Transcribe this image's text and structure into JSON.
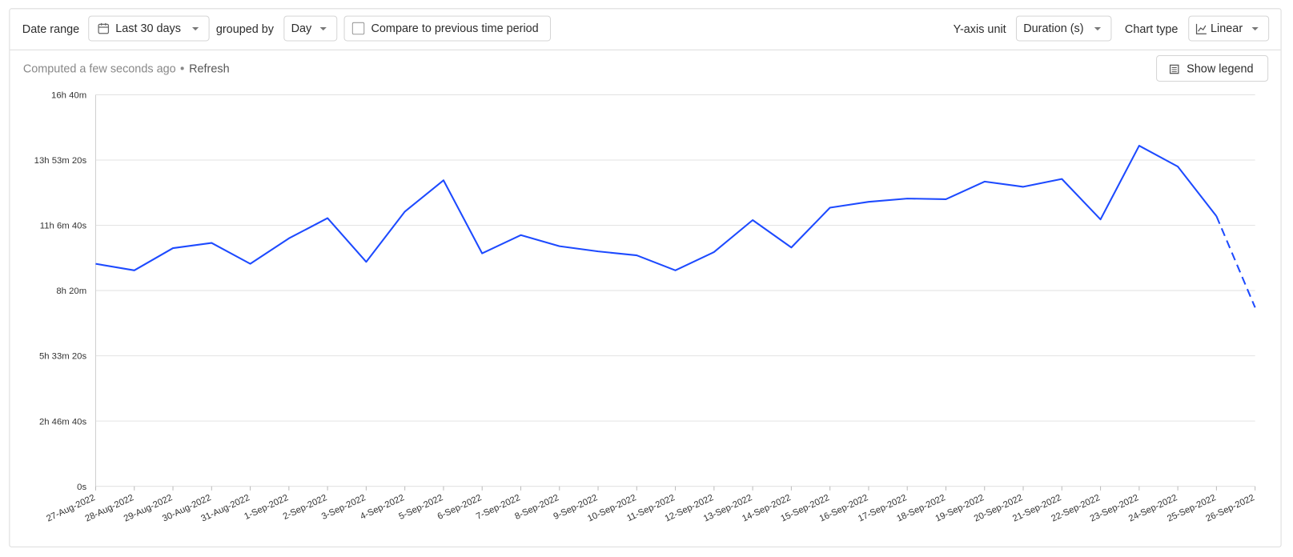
{
  "toolbar": {
    "date_range_label": "Date range",
    "date_range": "Last 30 days",
    "grouped_by_label": "grouped by",
    "interval": "Day",
    "compare_label": "Compare to previous time period",
    "y_axis_unit_label": "Y-axis unit",
    "y_axis_unit": "Duration (s)",
    "chart_type_label": "Chart type",
    "chart_type": "Linear"
  },
  "status": {
    "computed": "Computed a few seconds ago",
    "refresh": "Refresh"
  },
  "legend_button": "Show legend",
  "chart_data": {
    "type": "line",
    "categories": [
      "27-Aug-2022",
      "28-Aug-2022",
      "29-Aug-2022",
      "30-Aug-2022",
      "31-Aug-2022",
      "1-Sep-2022",
      "2-Sep-2022",
      "3-Sep-2022",
      "4-Sep-2022",
      "5-Sep-2022",
      "6-Sep-2022",
      "7-Sep-2022",
      "8-Sep-2022",
      "9-Sep-2022",
      "10-Sep-2022",
      "11-Sep-2022",
      "12-Sep-2022",
      "13-Sep-2022",
      "14-Sep-2022",
      "15-Sep-2022",
      "16-Sep-2022",
      "17-Sep-2022",
      "18-Sep-2022",
      "19-Sep-2022",
      "20-Sep-2022",
      "21-Sep-2022",
      "22-Sep-2022",
      "23-Sep-2022",
      "24-Sep-2022",
      "25-Sep-2022",
      "26-Sep-2022"
    ],
    "values": [
      34100,
      33100,
      36500,
      37300,
      34100,
      38000,
      41100,
      34400,
      42100,
      46900,
      35700,
      38500,
      36800,
      36000,
      35400,
      33100,
      35900,
      40800,
      36600,
      42700,
      43600,
      44100,
      44000,
      46700,
      45900,
      47100,
      40900,
      52200,
      49000,
      41400,
      27400
    ],
    "color": "#1d4aff",
    "ylim": [
      0,
      60000
    ],
    "yticks": [
      {
        "value": 0,
        "label": "0s"
      },
      {
        "value": 10000,
        "label": "2h 46m 40s"
      },
      {
        "value": 20000,
        "label": "5h 33m 20s"
      },
      {
        "value": 30000,
        "label": "8h 20m"
      },
      {
        "value": 40000,
        "label": "11h 6m 40s"
      },
      {
        "value": 50000,
        "label": "13h 53m 20s"
      },
      {
        "value": 60000,
        "label": "16h 40m"
      }
    ],
    "grid": true,
    "dashed_last_segment": true
  }
}
